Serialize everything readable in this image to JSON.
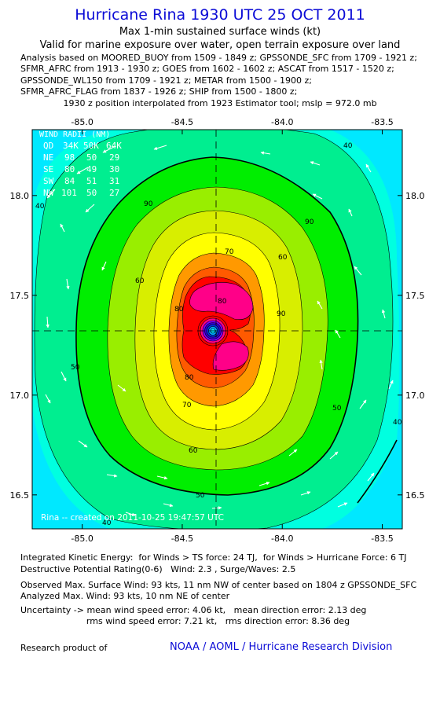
{
  "header": {
    "title": "Hurricane Rina 1930 UTC 25 OCT 2011",
    "subtitle": "Max 1-min sustained surface winds (kt)",
    "validity": "Valid for marine exposure over water, open terrain exposure over land",
    "analysis_lines": [
      "Analysis based on MOORED_BUOY from 1509 - 1849 z; GPSSONDE_SFC from 1709 - 1921 z;",
      "SFMR_AFRC from 1913 - 1930 z; GOES from 1602 - 1602 z; ASCAT from 1517 - 1520 z;",
      "GPSSONDE_WL150 from 1709 - 1921 z; METAR from 1500 - 1900 z;",
      "SFMR_AFRC_FLAG from 1837 - 1926 z; SHIP from 1500 - 1800 z;"
    ],
    "position_note": "1930 z position interpolated from 1923 Estimator tool; mslp = 972.0 mb"
  },
  "chart_data": {
    "type": "contour",
    "x_ticks": [
      "-85.0",
      "-84.5",
      "-84.0",
      "-83.5"
    ],
    "x_tick_values": [
      -85.0,
      -84.5,
      -84.0,
      -83.5
    ],
    "y_ticks": [
      "18.0",
      "17.5",
      "17.0",
      "16.5"
    ],
    "y_tick_values": [
      18.0,
      17.5,
      17.0,
      16.5
    ],
    "xlim": [
      -85.25,
      -83.4
    ],
    "ylim": [
      16.33,
      18.33
    ],
    "center": {
      "lon": -84.27,
      "lat": 17.33
    },
    "contour_labels": [
      "40",
      "50",
      "60",
      "70",
      "80",
      "90"
    ],
    "colors": {
      "lt30": "#00e8ff",
      "30": "#00ffe0",
      "40": "#00ee90",
      "50": "#00ee00",
      "60": "#99ee00",
      "70": "#d8ee00",
      "80": "#ffff00",
      "90": "#ff9900",
      "100": "#ff5a00",
      "110": "#ff0000",
      "120": "#ff0088"
    },
    "wind_radii_table": {
      "title": "WIND RADII (NM)",
      "header": [
        "QD",
        "34K",
        "50K",
        "64K"
      ],
      "rows": [
        [
          "NE",
          "98",
          "50",
          "29"
        ],
        [
          "SE",
          "80",
          "49",
          "30"
        ],
        [
          "SW",
          "84",
          "51",
          "31"
        ],
        [
          "NW",
          "101",
          "50",
          "27"
        ]
      ]
    },
    "created_stamp": "Rina -- created on 2011-10-25 19:47:57 UTC"
  },
  "footer": {
    "ike": "Integrated Kinetic Energy:  for Winds > TS force: 24 TJ,  for Winds > Hurricane Force: 6 TJ",
    "dpr": "Destructive Potential Rating(0-6)   Wind: 2.3 , Surge/Waves: 2.5",
    "observed": "Observed Max. Surface Wind: 93 kts, 11 nm NW of center based on 1804 z GPSSONDE_SFC",
    "analyzed": "Analyzed Max. Wind: 93 kts, 10 nm NE of center",
    "uncertainty1": "Uncertainty -> mean wind speed error: 4.06 kt,   mean direction error: 2.13 deg",
    "uncertainty2": "                        rms wind speed error: 7.21 kt,   rms direction error: 8.36 deg",
    "research_label": "Research product of",
    "credit": "NOAA / AOML / Hurricane Research Division"
  }
}
